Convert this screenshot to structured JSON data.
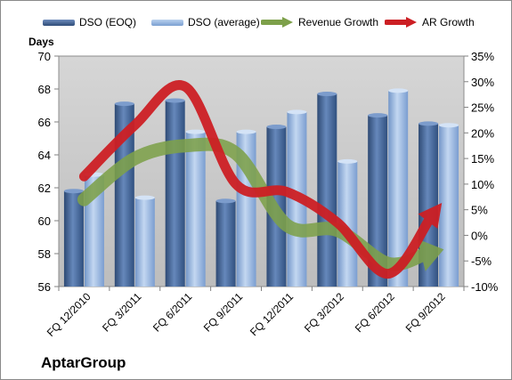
{
  "legend": {
    "dso_eoq": "DSO (EOQ)",
    "dso_avg": "DSO (average)",
    "revenue_growth": "Revenue Growth",
    "ar_growth": "AR Growth"
  },
  "company": "AptarGroup",
  "colors": {
    "plot_bg": "#c4c4c4",
    "bar_eoq": "#3e5f8f",
    "bar_avg": "#8fb1dd",
    "revenue_arrow": "#7da04a",
    "ar_arrow": "#cc1f24"
  },
  "chart_data": {
    "type": "bar",
    "categories": [
      "FQ 12/2010",
      "FQ 3/2011",
      "FQ 6/2011",
      "FQ 9/2011",
      "FQ 12/2011",
      "FQ 3/2012",
      "FQ 6/2012",
      "FQ 9/2012"
    ],
    "series": [
      {
        "name": "DSO (EOQ)",
        "axis": "left",
        "values": [
          61.8,
          67.1,
          67.3,
          61.2,
          65.7,
          67.7,
          66.4,
          65.9
        ]
      },
      {
        "name": "DSO (average)",
        "axis": "left",
        "values": [
          62.8,
          61.4,
          65.4,
          65.4,
          66.6,
          63.6,
          67.9,
          65.8
        ]
      },
      {
        "name": "Revenue Growth",
        "type": "line",
        "axis": "right",
        "values": [
          7,
          15,
          17.5,
          16,
          2,
          1,
          -5.5,
          -3
        ]
      },
      {
        "name": "AR Growth",
        "type": "line",
        "axis": "right",
        "values": [
          11.5,
          21.5,
          29,
          10,
          8.5,
          2.5,
          -7.5,
          5.5
        ]
      }
    ],
    "ylabel": "Days",
    "ylim": [
      56,
      70
    ],
    "yticks": [
      "56",
      "58",
      "60",
      "62",
      "64",
      "66",
      "68",
      "70"
    ],
    "y2lim": [
      -10,
      35
    ],
    "y2ticks": [
      "-10%",
      "-5%",
      "0%",
      "5%",
      "10%",
      "15%",
      "20%",
      "25%",
      "30%",
      "35%"
    ],
    "grid": false,
    "legend_position": "top"
  }
}
